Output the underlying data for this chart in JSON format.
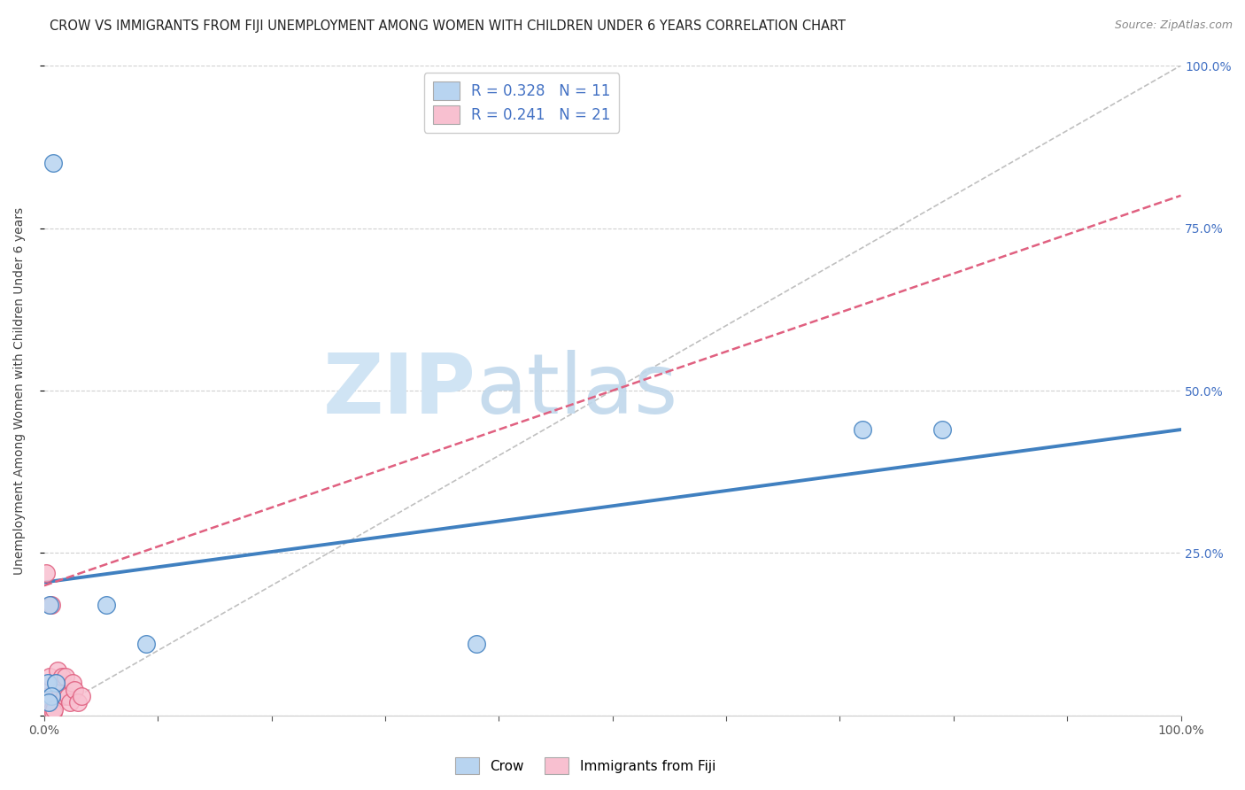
{
  "title": "CROW VS IMMIGRANTS FROM FIJI UNEMPLOYMENT AMONG WOMEN WITH CHILDREN UNDER 6 YEARS CORRELATION CHART",
  "source": "Source: ZipAtlas.com",
  "ylabel": "Unemployment Among Women with Children Under 6 years",
  "crow_label": "Crow",
  "fiji_label": "Immigrants from Fiji",
  "crow_R": 0.328,
  "crow_N": 11,
  "fiji_R": 0.241,
  "fiji_N": 21,
  "crow_color": "#b8d4f0",
  "crow_line_color": "#4080c0",
  "fiji_color": "#f8c0d0",
  "fiji_line_color": "#e06080",
  "crow_x": [
    0.008,
    0.005,
    0.055,
    0.09,
    0.38,
    0.72,
    0.79,
    0.003,
    0.01,
    0.006,
    0.004
  ],
  "crow_y": [
    0.85,
    0.17,
    0.17,
    0.11,
    0.11,
    0.44,
    0.44,
    0.05,
    0.05,
    0.03,
    0.02
  ],
  "fiji_x": [
    0.002,
    0.003,
    0.004,
    0.005,
    0.006,
    0.007,
    0.008,
    0.009,
    0.01,
    0.012,
    0.014,
    0.016,
    0.018,
    0.019,
    0.021,
    0.023,
    0.025,
    0.027,
    0.03,
    0.033,
    0.006
  ],
  "fiji_y": [
    0.22,
    0.04,
    0.03,
    0.06,
    0.02,
    0.01,
    0.005,
    0.01,
    0.05,
    0.07,
    0.04,
    0.06,
    0.03,
    0.06,
    0.03,
    0.02,
    0.05,
    0.04,
    0.02,
    0.03,
    0.17
  ],
  "xlim": [
    0.0,
    1.0
  ],
  "ylim": [
    0.0,
    1.0
  ],
  "xticks": [
    0.0,
    0.1,
    0.2,
    0.3,
    0.4,
    0.5,
    0.6,
    0.7,
    0.8,
    0.9,
    1.0
  ],
  "yticks": [
    0.0,
    0.25,
    0.5,
    0.75,
    1.0
  ],
  "ytick_labels_right": [
    "",
    "25.0%",
    "50.0%",
    "75.0%",
    "100.0%"
  ],
  "xtick_labels": [
    "0.0%",
    "",
    "",
    "",
    "",
    "",
    "",
    "",
    "",
    "",
    "100.0%"
  ],
  "background_color": "#ffffff",
  "grid_color": "#d0d0d0",
  "watermark_zip": "ZIP",
  "watermark_atlas": "atlas",
  "scatter_size": 200,
  "crow_trend_intercept": 0.205,
  "crow_trend_slope": 0.235,
  "fiji_trend_intercept": 0.2,
  "fiji_trend_slope": 0.6,
  "title_fontsize": 10.5,
  "source_fontsize": 9,
  "axis_label_fontsize": 10,
  "tick_fontsize": 10,
  "legend_fontsize": 12
}
